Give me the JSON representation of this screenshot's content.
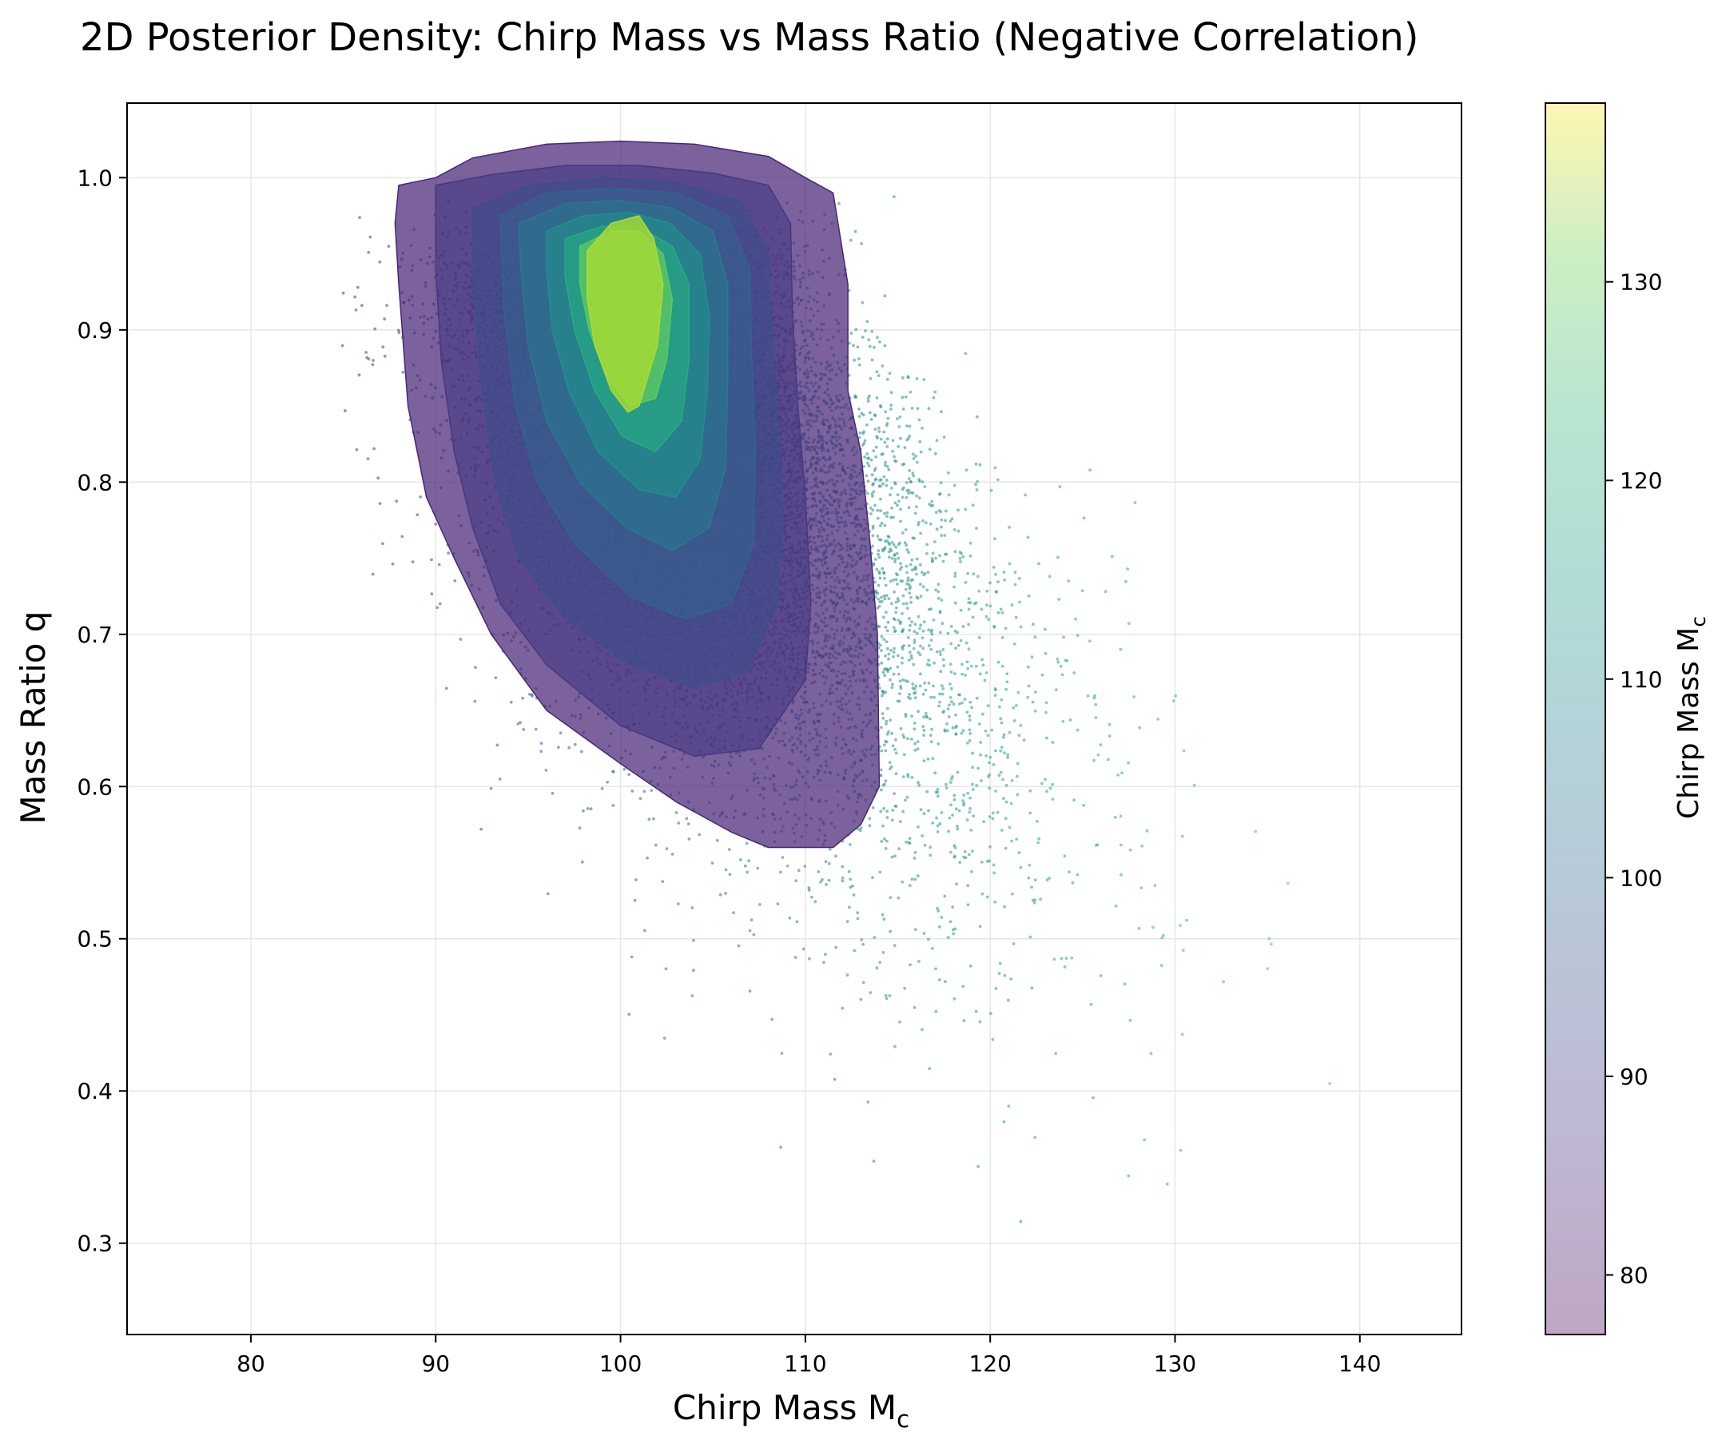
{
  "chart_data": {
    "type": "scatter",
    "title": "2D Posterior Density: Chirp Mass vs Mass Ratio (Negative Correlation)",
    "xlabel": "Chirp Mass M",
    "xlabel_sub": "c",
    "ylabel": "Mass Ratio q",
    "xlim": [
      73.3,
      145.5
    ],
    "ylim": [
      0.24,
      1.049
    ],
    "x_ticks": [
      80,
      90,
      100,
      110,
      120,
      130,
      140
    ],
    "y_ticks": [
      0.3,
      0.4,
      0.5,
      0.6,
      0.7,
      0.8,
      0.9,
      1.0
    ],
    "grid": true,
    "colorbar": {
      "label": "Chirp Mass M",
      "label_sub": "c",
      "range": [
        77,
        139
      ],
      "ticks": [
        80,
        90,
        100,
        110,
        120,
        130
      ]
    },
    "scatter_model": {
      "description": "posterior samples; point color encodes chirp mass",
      "mode": {
        "x": 100,
        "y": 0.91
      },
      "n_points": 14000,
      "relation": "q decreases as chirp mass increases"
    },
    "density_contours": [
      {
        "level": 1,
        "points": [
          [
            88.0,
            0.995
          ],
          [
            90.0,
            1.0
          ],
          [
            92.0,
            1.013
          ],
          [
            96.0,
            1.022
          ],
          [
            100.0,
            1.024
          ],
          [
            104.0,
            1.022
          ],
          [
            108.0,
            1.014
          ],
          [
            110.0,
            1.0
          ],
          [
            111.5,
            0.99
          ],
          [
            112.3,
            0.93
          ],
          [
            112.3,
            0.86
          ],
          [
            113.0,
            0.82
          ],
          [
            113.5,
            0.76
          ],
          [
            113.9,
            0.7
          ],
          [
            114.0,
            0.6
          ],
          [
            113.0,
            0.575
          ],
          [
            111.5,
            0.56
          ],
          [
            108.0,
            0.56
          ],
          [
            106.0,
            0.57
          ],
          [
            103.0,
            0.59
          ],
          [
            100.0,
            0.615
          ],
          [
            96.0,
            0.65
          ],
          [
            93.0,
            0.7
          ],
          [
            91.0,
            0.75
          ],
          [
            89.5,
            0.79
          ],
          [
            88.5,
            0.85
          ],
          [
            88.0,
            0.93
          ],
          [
            87.8,
            0.97
          ]
        ]
      },
      {
        "level": 2,
        "points": [
          [
            90.0,
            0.995
          ],
          [
            93.0,
            1.002
          ],
          [
            97.0,
            1.008
          ],
          [
            101.0,
            1.008
          ],
          [
            105.0,
            1.003
          ],
          [
            108.0,
            0.995
          ],
          [
            109.2,
            0.97
          ],
          [
            109.3,
            0.91
          ],
          [
            109.6,
            0.85
          ],
          [
            110.0,
            0.79
          ],
          [
            110.3,
            0.72
          ],
          [
            110.0,
            0.67
          ],
          [
            107.5,
            0.625
          ],
          [
            104.0,
            0.62
          ],
          [
            100.0,
            0.64
          ],
          [
            96.0,
            0.68
          ],
          [
            93.5,
            0.72
          ],
          [
            92.0,
            0.77
          ],
          [
            91.0,
            0.82
          ],
          [
            90.3,
            0.88
          ],
          [
            90.0,
            0.94
          ]
        ]
      },
      {
        "level": 3,
        "points": [
          [
            92.0,
            0.98
          ],
          [
            95.0,
            0.995
          ],
          [
            99.0,
            1.0
          ],
          [
            103.0,
            0.997
          ],
          [
            106.5,
            0.985
          ],
          [
            108.0,
            0.95
          ],
          [
            108.2,
            0.9
          ],
          [
            108.5,
            0.84
          ],
          [
            108.8,
            0.78
          ],
          [
            108.5,
            0.72
          ],
          [
            106.8,
            0.675
          ],
          [
            104.0,
            0.665
          ],
          [
            100.5,
            0.68
          ],
          [
            97.0,
            0.71
          ],
          [
            94.5,
            0.75
          ],
          [
            93.2,
            0.8
          ],
          [
            92.5,
            0.86
          ],
          [
            92.0,
            0.93
          ]
        ]
      },
      {
        "level": 4,
        "points": [
          [
            93.5,
            0.975
          ],
          [
            96.0,
            0.99
          ],
          [
            99.5,
            0.993
          ],
          [
            103.0,
            0.99
          ],
          [
            105.8,
            0.975
          ],
          [
            107.0,
            0.94
          ],
          [
            107.1,
            0.88
          ],
          [
            107.3,
            0.82
          ],
          [
            107.2,
            0.76
          ],
          [
            106.0,
            0.72
          ],
          [
            103.5,
            0.71
          ],
          [
            100.5,
            0.725
          ],
          [
            97.5,
            0.76
          ],
          [
            95.5,
            0.8
          ],
          [
            94.3,
            0.85
          ],
          [
            93.7,
            0.91
          ]
        ]
      },
      {
        "level": 5,
        "points": [
          [
            94.5,
            0.97
          ],
          [
            97.0,
            0.983
          ],
          [
            100.0,
            0.985
          ],
          [
            102.8,
            0.98
          ],
          [
            105.0,
            0.965
          ],
          [
            105.8,
            0.93
          ],
          [
            105.8,
            0.87
          ],
          [
            105.7,
            0.81
          ],
          [
            104.8,
            0.77
          ],
          [
            102.8,
            0.755
          ],
          [
            100.3,
            0.77
          ],
          [
            97.8,
            0.8
          ],
          [
            96.0,
            0.84
          ],
          [
            95.0,
            0.89
          ],
          [
            94.6,
            0.94
          ]
        ]
      },
      {
        "level": 6,
        "points": [
          [
            96.0,
            0.965
          ],
          [
            98.0,
            0.975
          ],
          [
            100.5,
            0.977
          ],
          [
            102.7,
            0.97
          ],
          [
            104.3,
            0.95
          ],
          [
            104.8,
            0.91
          ],
          [
            104.7,
            0.86
          ],
          [
            104.3,
            0.815
          ],
          [
            103.0,
            0.79
          ],
          [
            101.0,
            0.795
          ],
          [
            98.8,
            0.82
          ],
          [
            97.2,
            0.86
          ],
          [
            96.3,
            0.9
          ],
          [
            96.0,
            0.94
          ]
        ]
      },
      {
        "level": 7,
        "points": [
          [
            97.0,
            0.96
          ],
          [
            99.0,
            0.968
          ],
          [
            101.0,
            0.968
          ],
          [
            102.8,
            0.955
          ],
          [
            103.7,
            0.93
          ],
          [
            103.7,
            0.88
          ],
          [
            103.3,
            0.84
          ],
          [
            101.9,
            0.82
          ],
          [
            100.1,
            0.83
          ],
          [
            98.6,
            0.86
          ],
          [
            97.5,
            0.9
          ],
          [
            97.0,
            0.935
          ]
        ]
      },
      {
        "level": 8,
        "points": [
          [
            97.8,
            0.955
          ],
          [
            99.5,
            0.965
          ],
          [
            101.0,
            0.965
          ],
          [
            102.3,
            0.95
          ],
          [
            102.8,
            0.92
          ],
          [
            102.5,
            0.88
          ],
          [
            101.9,
            0.855
          ],
          [
            100.5,
            0.85
          ],
          [
            99.2,
            0.87
          ],
          [
            98.3,
            0.9
          ],
          [
            97.8,
            0.93
          ]
        ]
      },
      {
        "level": 9,
        "points": [
          [
            98.2,
            0.952
          ],
          [
            99.5,
            0.97
          ],
          [
            101.0,
            0.975
          ],
          [
            101.8,
            0.96
          ],
          [
            102.3,
            0.93
          ],
          [
            102.0,
            0.89
          ],
          [
            101.0,
            0.85
          ],
          [
            100.4,
            0.846
          ],
          [
            99.5,
            0.86
          ],
          [
            98.6,
            0.89
          ],
          [
            98.2,
            0.92
          ]
        ]
      }
    ]
  }
}
